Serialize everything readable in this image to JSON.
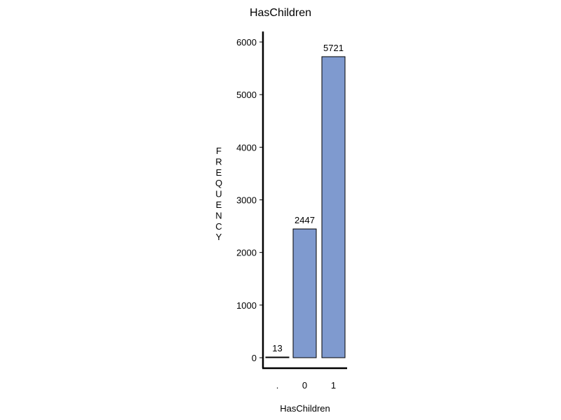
{
  "chart_data": {
    "type": "bar",
    "title": "HasChildren",
    "xlabel": "HasChildren",
    "ylabel": "FREQUENCY",
    "categories": [
      ".",
      "0",
      "1"
    ],
    "values": [
      13,
      2447,
      5721
    ],
    "data_labels": [
      "13",
      "2447",
      "5721"
    ],
    "ylim": [
      0,
      6000
    ],
    "yticks": [
      "0",
      "1000",
      "2000",
      "3000",
      "4000",
      "5000",
      "6000"
    ],
    "grid": false,
    "bar_color": "#7f9acf",
    "bar_edge_color": "#000000"
  }
}
